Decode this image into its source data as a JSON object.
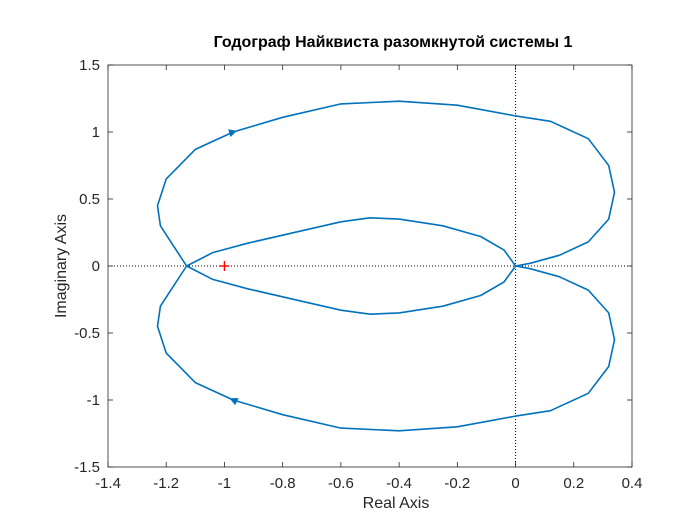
{
  "chart_data": {
    "type": "line",
    "title": "Годограф Найквиста разомкнутой системы 1",
    "xlabel": "Real Axis",
    "ylabel": "Imaginary Axis",
    "xlim": [
      -1.4,
      0.4
    ],
    "ylim": [
      -1.5,
      1.5
    ],
    "xticks": [
      -1.4,
      -1.2,
      -1,
      -0.8,
      -0.6,
      -0.4,
      -0.2,
      0,
      0.2,
      0.4
    ],
    "yticks": [
      -1.5,
      -1,
      -0.5,
      0,
      0.5,
      1,
      1.5
    ],
    "xtick_labels": [
      "-1.4",
      "-1.2",
      "-1",
      "-0.8",
      "-0.6",
      "-0.4",
      "-0.2",
      "0",
      "0.2",
      "0.4"
    ],
    "ytick_labels": [
      "-1.5",
      "-1",
      "-0.5",
      "0",
      "0.5",
      "1",
      "1.5"
    ],
    "grid": false,
    "box": true,
    "line_color": "#0072BD",
    "critical_point_color": "#FF0000",
    "axis_color": "#262626",
    "series": [
      {
        "points": [
          [
            0,
            0
          ],
          [
            0.05,
            0.02
          ],
          [
            0.15,
            0.08
          ],
          [
            0.25,
            0.18
          ],
          [
            0.32,
            0.35
          ],
          [
            0.34,
            0.55
          ],
          [
            0.32,
            0.75
          ],
          [
            0.25,
            0.95
          ],
          [
            0.12,
            1.08
          ],
          [
            0,
            1.12
          ],
          [
            -0.2,
            1.2
          ],
          [
            -0.4,
            1.23
          ],
          [
            -0.6,
            1.21
          ],
          [
            -0.8,
            1.11
          ],
          [
            -0.97,
            1.0
          ],
          [
            -1.1,
            0.87
          ],
          [
            -1.2,
            0.65
          ],
          [
            -1.23,
            0.45
          ],
          [
            -1.22,
            0.3
          ],
          [
            -1.19,
            0.2
          ],
          [
            -1.13,
            0.0
          ],
          [
            -1.04,
            -0.1
          ],
          [
            -0.92,
            -0.17
          ],
          [
            -0.78,
            -0.24
          ],
          [
            -0.6,
            -0.33
          ],
          [
            -0.5,
            -0.36
          ],
          [
            -0.4,
            -0.35
          ],
          [
            -0.25,
            -0.3
          ],
          [
            -0.12,
            -0.22
          ],
          [
            -0.04,
            -0.12
          ],
          [
            0,
            0
          ]
        ]
      },
      {
        "points": [
          [
            0,
            0
          ],
          [
            0.05,
            -0.02
          ],
          [
            0.15,
            -0.08
          ],
          [
            0.25,
            -0.18
          ],
          [
            0.32,
            -0.35
          ],
          [
            0.34,
            -0.55
          ],
          [
            0.32,
            -0.75
          ],
          [
            0.25,
            -0.95
          ],
          [
            0.12,
            -1.08
          ],
          [
            0,
            -1.12
          ],
          [
            -0.2,
            -1.2
          ],
          [
            -0.4,
            -1.23
          ],
          [
            -0.6,
            -1.21
          ],
          [
            -0.8,
            -1.11
          ],
          [
            -0.97,
            -1.0
          ],
          [
            -1.1,
            -0.87
          ],
          [
            -1.2,
            -0.65
          ],
          [
            -1.23,
            -0.45
          ],
          [
            -1.22,
            -0.3
          ],
          [
            -1.19,
            -0.2
          ],
          [
            -1.13,
            0.0
          ],
          [
            -1.04,
            0.1
          ],
          [
            -0.92,
            0.17
          ],
          [
            -0.78,
            0.24
          ],
          [
            -0.6,
            0.33
          ],
          [
            -0.5,
            0.36
          ],
          [
            -0.4,
            0.35
          ],
          [
            -0.25,
            0.3
          ],
          [
            -0.12,
            0.22
          ],
          [
            -0.04,
            0.12
          ],
          [
            0,
            0
          ]
        ]
      }
    ],
    "arrows": [
      {
        "at": [
          -0.97,
          1.0
        ],
        "toward": [
          -0.8,
          1.11
        ]
      },
      {
        "at": [
          -0.97,
          -1.0
        ],
        "toward": [
          -1.1,
          -0.87
        ]
      }
    ],
    "critical_point": {
      "x": -1,
      "y": 0,
      "marker": "+"
    }
  }
}
